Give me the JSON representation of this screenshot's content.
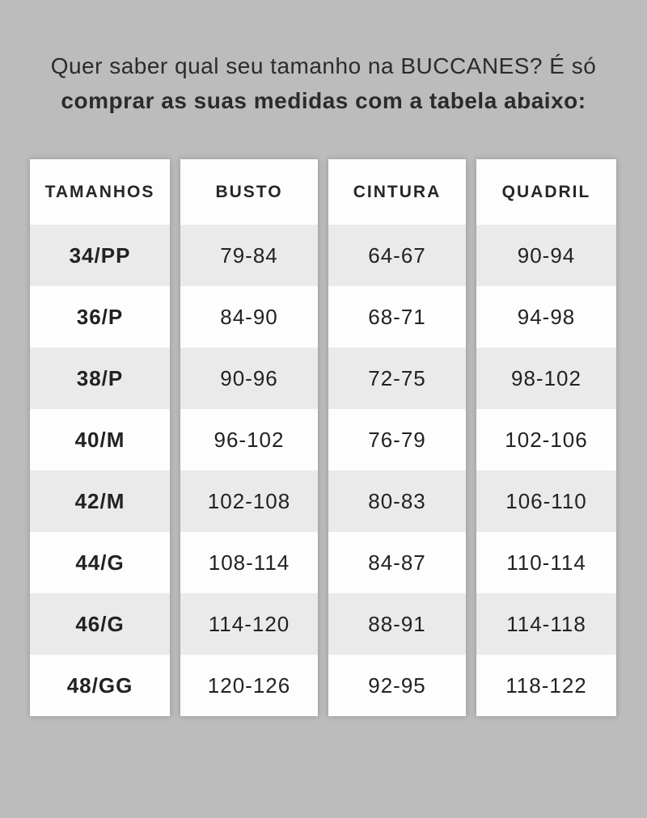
{
  "page": {
    "background_color": "#bcbcbc",
    "card_color": "#fdfdfd",
    "alt_row_color": "#eaeaea",
    "text_color": "#262626"
  },
  "heading": {
    "line1": "Quer saber qual seu tamanho na BUCCANES? É só",
    "line2": "comprar as suas medidas com a tabela abaixo:"
  },
  "table": {
    "headers": [
      "TAMANHOS",
      "BUSTO",
      "CINTURA",
      "QUADRIL"
    ],
    "sizes": [
      "34/PP",
      "36/P",
      "38/P",
      "40/M",
      "42/M",
      "44/G",
      "46/G",
      "48/GG"
    ],
    "busto": [
      "79-84",
      "84-90",
      "90-96",
      "96-102",
      "102-108",
      "108-114",
      "114-120",
      "120-126"
    ],
    "cintura": [
      "64-67",
      "68-71",
      "72-75",
      "76-79",
      "80-83",
      "84-87",
      "88-91",
      "92-95"
    ],
    "quadril": [
      "90-94",
      "94-98",
      "98-102",
      "102-106",
      "106-110",
      "110-114",
      "114-118",
      "118-122"
    ]
  }
}
